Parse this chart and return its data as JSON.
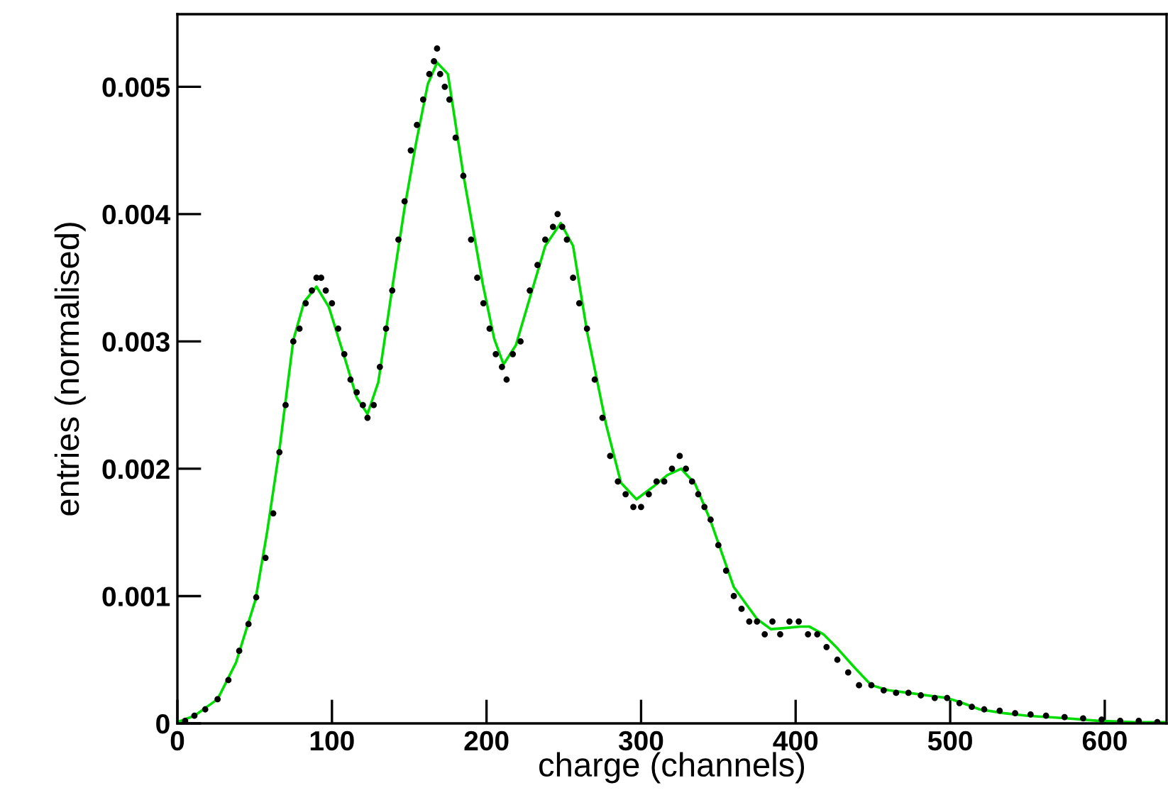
{
  "chart_data": {
    "type": "line",
    "xlabel": "charge (channels)",
    "ylabel": "entries (normalised)",
    "xlim": [
      0,
      640
    ],
    "ylim": [
      0,
      0.00557
    ],
    "xticks": [
      0,
      100,
      200,
      300,
      400,
      500,
      600
    ],
    "yticks": [
      0,
      0.001,
      0.002,
      0.003,
      0.004,
      0.005
    ],
    "grid": false,
    "legend": false,
    "series": [
      {
        "type": "scatter",
        "color": "#000000",
        "marker": "circle",
        "x": [
          5,
          11,
          18,
          26,
          33,
          40,
          46,
          51,
          57,
          62,
          66,
          70,
          75,
          79,
          83,
          87,
          90,
          93,
          96,
          100,
          104,
          108,
          112,
          116,
          120,
          123,
          127,
          131,
          135,
          139,
          143,
          147,
          151,
          155,
          159,
          163,
          166,
          168,
          170,
          173,
          176,
          180,
          185,
          190,
          194,
          198,
          202,
          206,
          210,
          213,
          217,
          222,
          228,
          233,
          238,
          243,
          246,
          249,
          252,
          256,
          260,
          265,
          270,
          275,
          280,
          285,
          290,
          295,
          300,
          305,
          310,
          315,
          320,
          325,
          329,
          333,
          337,
          341,
          345,
          350,
          355,
          360,
          365,
          370,
          375,
          380,
          385,
          390,
          396,
          402,
          408,
          414,
          420,
          427,
          434,
          441,
          449,
          457,
          465,
          473,
          481,
          490,
          498,
          506,
          514,
          522,
          532,
          542,
          552,
          562,
          574,
          586,
          598,
          610,
          622,
          634
        ],
        "values": [
          2e-05,
          6e-05,
          0.00011,
          0.00019,
          0.00034,
          0.00057,
          0.00078,
          0.00099,
          0.0013,
          0.00165,
          0.00213,
          0.0025,
          0.003,
          0.0031,
          0.0033,
          0.0034,
          0.0035,
          0.0035,
          0.0034,
          0.0033,
          0.0031,
          0.0029,
          0.0027,
          0.0026,
          0.0025,
          0.0024,
          0.0025,
          0.0028,
          0.0031,
          0.0034,
          0.0038,
          0.0041,
          0.0045,
          0.0047,
          0.0049,
          0.0051,
          0.0052,
          0.0053,
          0.0051,
          0.005,
          0.0049,
          0.0046,
          0.0043,
          0.0038,
          0.0035,
          0.0033,
          0.0031,
          0.0029,
          0.0028,
          0.0027,
          0.0029,
          0.003,
          0.0034,
          0.0036,
          0.0038,
          0.0039,
          0.004,
          0.0039,
          0.0038,
          0.0035,
          0.0033,
          0.0031,
          0.0027,
          0.0024,
          0.0021,
          0.0019,
          0.0018,
          0.0017,
          0.0017,
          0.0018,
          0.0019,
          0.0019,
          0.002,
          0.0021,
          0.002,
          0.0019,
          0.0018,
          0.0017,
          0.0016,
          0.0014,
          0.0012,
          0.001,
          0.0009,
          0.0008,
          0.0008,
          0.0007,
          0.0008,
          0.0007,
          0.0008,
          0.0008,
          0.0007,
          0.0007,
          0.0006,
          0.0005,
          0.0004,
          0.0003,
          0.0003,
          0.00026,
          0.00024,
          0.00024,
          0.00022,
          0.0002,
          0.0002,
          0.00016,
          0.00013,
          0.00011,
          0.0001,
          8e-05,
          7e-05,
          6e-05,
          5e-05,
          4e-05,
          3e-05,
          2e-05,
          2e-05,
          1e-05
        ]
      },
      {
        "color": "#00dd00",
        "marker": "none",
        "line_style": "solid",
        "x": [
          0,
          11,
          26,
          38,
          50.5,
          58,
          66,
          75,
          82,
          90,
          98,
          108.5,
          116,
          123,
          130,
          139.4,
          147,
          154.6,
          162,
          168,
          175,
          185,
          197.6,
          205,
          211,
          219,
          228,
          238,
          248,
          256,
          265,
          277.5,
          287,
          297,
          308,
          317,
          326,
          335,
          345,
          360,
          375,
          384,
          394,
          403,
          409,
          418,
          427,
          438,
          449,
          460,
          473,
          485,
          498,
          508,
          519,
          535,
          550,
          575,
          596,
          620,
          640
        ],
        "values": [
          1e-05,
          6e-05,
          0.00019,
          0.00048,
          0.00097,
          0.0015,
          0.00215,
          0.00301,
          0.00331,
          0.00343,
          0.00327,
          0.00286,
          0.00256,
          0.00243,
          0.00268,
          0.00345,
          0.00405,
          0.00457,
          0.00502,
          0.00519,
          0.0051,
          0.00431,
          0.00345,
          0.00302,
          0.00282,
          0.00297,
          0.00334,
          0.00375,
          0.00393,
          0.00375,
          0.00308,
          0.00234,
          0.00189,
          0.00176,
          0.00186,
          0.00195,
          0.002,
          0.00188,
          0.00159,
          0.00107,
          0.00082,
          0.00074,
          0.00075,
          0.00076,
          0.00076,
          0.0007,
          0.00059,
          0.00044,
          0.0003,
          0.00026,
          0.00024,
          0.00022,
          0.0002,
          0.00016,
          0.00011,
          8e-05,
          6e-05,
          4e-05,
          2e-05,
          1e-05,
          1e-05
        ]
      }
    ]
  }
}
